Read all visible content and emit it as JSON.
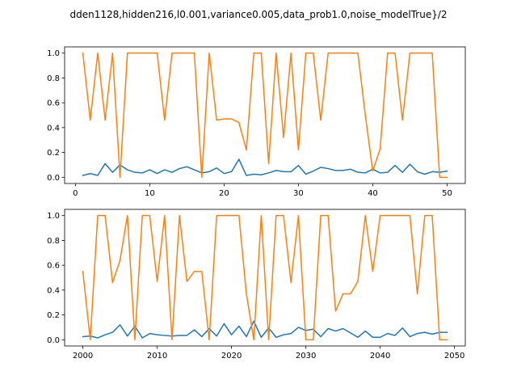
{
  "figure": {
    "title": "dden1128,hidden216,l0.001,variance0.005,data_prob1.0,noise_modelTrue}/2"
  },
  "colors": {
    "series_a": "#1f77b4",
    "series_b": "#ff7f0e"
  },
  "chart_data": [
    {
      "type": "line",
      "xlim": [
        -1.45,
        52.45
      ],
      "ylim": [
        -0.05,
        1.05
      ],
      "xticks": [
        0,
        10,
        20,
        30,
        40,
        50
      ],
      "yticks": [
        0.0,
        0.2,
        0.4,
        0.6,
        0.8,
        1.0
      ],
      "xtick_labels": [
        "0",
        "10",
        "20",
        "30",
        "40",
        "50"
      ],
      "ytick_labels": [
        "0.0",
        "0.2",
        "0.4",
        "0.6",
        "0.8",
        "1.0"
      ],
      "x": [
        1,
        2,
        3,
        4,
        5,
        6,
        7,
        8,
        9,
        10,
        11,
        12,
        13,
        14,
        15,
        16,
        17,
        18,
        19,
        20,
        21,
        22,
        23,
        24,
        25,
        26,
        27,
        28,
        29,
        30,
        31,
        32,
        33,
        34,
        35,
        36,
        37,
        38,
        39,
        40,
        41,
        42,
        43,
        44,
        45,
        46,
        47,
        48,
        49,
        50
      ],
      "series": [
        {
          "color_key": "series_a",
          "values": [
            0.015,
            0.03,
            0.015,
            0.11,
            0.04,
            0.1,
            0.06,
            0.04,
            0.035,
            0.06,
            0.03,
            0.06,
            0.04,
            0.07,
            0.085,
            0.06,
            0.035,
            0.045,
            0.075,
            0.03,
            0.045,
            0.145,
            0.015,
            0.025,
            0.02,
            0.035,
            0.055,
            0.045,
            0.045,
            0.095,
            0.025,
            0.05,
            0.08,
            0.07,
            0.055,
            0.055,
            0.065,
            0.04,
            0.035,
            0.065,
            0.035,
            0.04,
            0.095,
            0.04,
            0.105,
            0.045,
            0.025,
            0.045,
            0.04,
            0.05
          ]
        },
        {
          "color_key": "series_b",
          "values": [
            1.0,
            0.46,
            1.0,
            0.46,
            1.0,
            0.0,
            1.0,
            1.0,
            1.0,
            1.0,
            1.0,
            0.46,
            1.0,
            1.0,
            1.0,
            1.0,
            0.0,
            1.0,
            0.46,
            0.47,
            0.47,
            0.44,
            0.22,
            1.0,
            1.0,
            0.11,
            1.0,
            0.32,
            1.0,
            0.22,
            1.0,
            1.0,
            0.46,
            1.0,
            1.0,
            1.0,
            1.0,
            1.0,
            0.5,
            0.05,
            0.23,
            1.0,
            1.0,
            0.46,
            1.0,
            1.0,
            1.0,
            1.0,
            0.0,
            0.0
          ]
        }
      ]
    },
    {
      "type": "line",
      "xlim": [
        1997.55,
        2051.45
      ],
      "ylim": [
        -0.05,
        1.05
      ],
      "xticks": [
        2000,
        2010,
        2020,
        2030,
        2040,
        2050
      ],
      "yticks": [
        0.0,
        0.2,
        0.4,
        0.6,
        0.8,
        1.0
      ],
      "xtick_labels": [
        "2000",
        "2010",
        "2020",
        "2030",
        "2040",
        "2050"
      ],
      "ytick_labels": [
        "0.0",
        "0.2",
        "0.4",
        "0.6",
        "0.8",
        "1.0"
      ],
      "x": [
        2000,
        2001,
        2002,
        2003,
        2004,
        2005,
        2006,
        2007,
        2008,
        2009,
        2010,
        2011,
        2012,
        2013,
        2014,
        2015,
        2016,
        2017,
        2018,
        2019,
        2020,
        2021,
        2022,
        2023,
        2024,
        2025,
        2026,
        2027,
        2028,
        2029,
        2030,
        2031,
        2032,
        2033,
        2034,
        2035,
        2036,
        2037,
        2038,
        2039,
        2040,
        2041,
        2042,
        2043,
        2044,
        2045,
        2046,
        2047,
        2048,
        2049
      ],
      "series": [
        {
          "color_key": "series_a",
          "values": [
            0.025,
            0.03,
            0.015,
            0.04,
            0.06,
            0.12,
            0.03,
            0.11,
            0.015,
            0.05,
            0.04,
            0.035,
            0.03,
            0.035,
            0.035,
            0.08,
            0.025,
            0.09,
            0.03,
            0.13,
            0.04,
            0.11,
            0.025,
            0.15,
            0.02,
            0.095,
            0.02,
            0.04,
            0.05,
            0.1,
            0.075,
            0.085,
            0.025,
            0.09,
            0.07,
            0.09,
            0.055,
            0.02,
            0.07,
            0.02,
            0.02,
            0.05,
            0.035,
            0.095,
            0.025,
            0.05,
            0.06,
            0.045,
            0.06,
            0.06
          ]
        },
        {
          "color_key": "series_b",
          "values": [
            0.55,
            0.0,
            1.0,
            1.0,
            0.46,
            0.64,
            1.0,
            0.0,
            1.0,
            1.0,
            0.47,
            1.0,
            0.0,
            1.0,
            0.47,
            0.55,
            0.55,
            0.0,
            1.0,
            1.0,
            1.0,
            1.0,
            0.37,
            0.0,
            1.0,
            0.0,
            1.0,
            1.0,
            0.46,
            1.0,
            0.0,
            0.0,
            1.0,
            1.0,
            0.23,
            0.37,
            0.37,
            0.47,
            1.0,
            0.55,
            1.0,
            1.0,
            1.0,
            1.0,
            1.0,
            0.37,
            1.0,
            1.0,
            0.0,
            0.0
          ]
        }
      ]
    }
  ]
}
